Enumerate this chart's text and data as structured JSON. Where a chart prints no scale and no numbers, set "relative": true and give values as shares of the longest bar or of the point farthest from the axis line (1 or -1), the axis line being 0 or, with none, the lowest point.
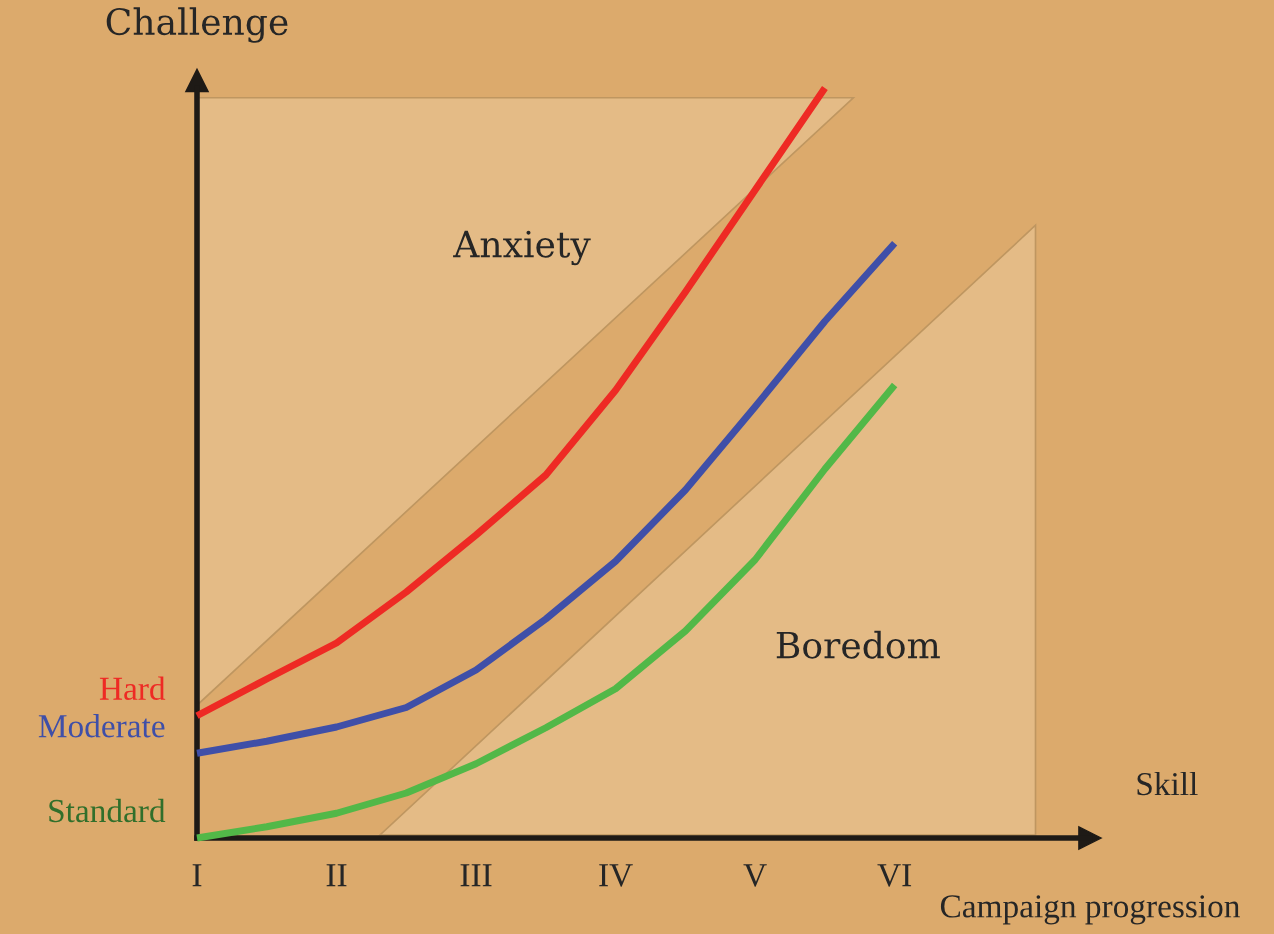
{
  "chart_data": {
    "type": "line",
    "relative": true,
    "ylabel": "Challenge",
    "xlabel": "Campaign progression",
    "categories": [
      "I",
      null,
      "II",
      null,
      "III",
      null,
      "IV",
      null,
      "V",
      null,
      "VI",
      null,
      null
    ],
    "series": [
      {
        "name": "Hard",
        "color": "#ee2a24",
        "values": [
          0.163,
          0.212,
          0.26,
          0.328,
          0.404,
          0.484,
          0.597,
          0.728,
          0.864,
          1.0,
          null,
          null,
          null
        ]
      },
      {
        "name": "Moderate",
        "color": "#3f4fa8",
        "values": [
          0.113,
          0.129,
          0.148,
          0.174,
          0.224,
          0.292,
          0.369,
          0.464,
          0.575,
          0.689,
          0.793,
          null,
          null
        ]
      },
      {
        "name": "Standard",
        "color": "#52b848",
        "values": [
          0,
          0.015,
          0.033,
          0.06,
          0.099,
          0.147,
          0.199,
          0.276,
          0.371,
          0.492,
          0.604,
          null,
          null
        ]
      }
    ],
    "annotations": [
      "Anxiety",
      "Boredom",
      "Skill"
    ],
    "marker": "none",
    "line_style": "solid",
    "grid": false,
    "legend": false
  }
}
